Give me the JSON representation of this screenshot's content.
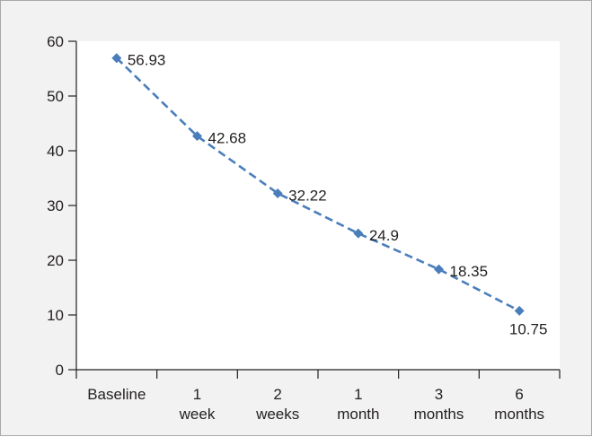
{
  "chart_data": {
    "type": "line",
    "title": "",
    "xlabel": "",
    "ylabel": "",
    "categories": [
      [
        "Baseline"
      ],
      [
        "1",
        "week"
      ],
      [
        "2",
        "weeks"
      ],
      [
        "1",
        "month"
      ],
      [
        "3",
        "months"
      ],
      [
        "6",
        "months"
      ]
    ],
    "series": [
      {
        "values": [
          56.93,
          42.68,
          32.22,
          24.9,
          18.35,
          10.75
        ]
      }
    ],
    "data_labels": [
      "56.93",
      "42.68",
      "32.22",
      "24.9",
      "18.35",
      "10.75"
    ],
    "ylim": [
      0,
      60
    ],
    "yticks": [
      0,
      10,
      20,
      30,
      40,
      50,
      60
    ],
    "grid": false,
    "legend": "none",
    "line_style": "dashed",
    "marker": "diamond",
    "colors": {
      "series": "#4a7ebb",
      "axis": "#231f20",
      "plot_background": "#ffffff",
      "frame_background": "#f2f2f2"
    }
  }
}
